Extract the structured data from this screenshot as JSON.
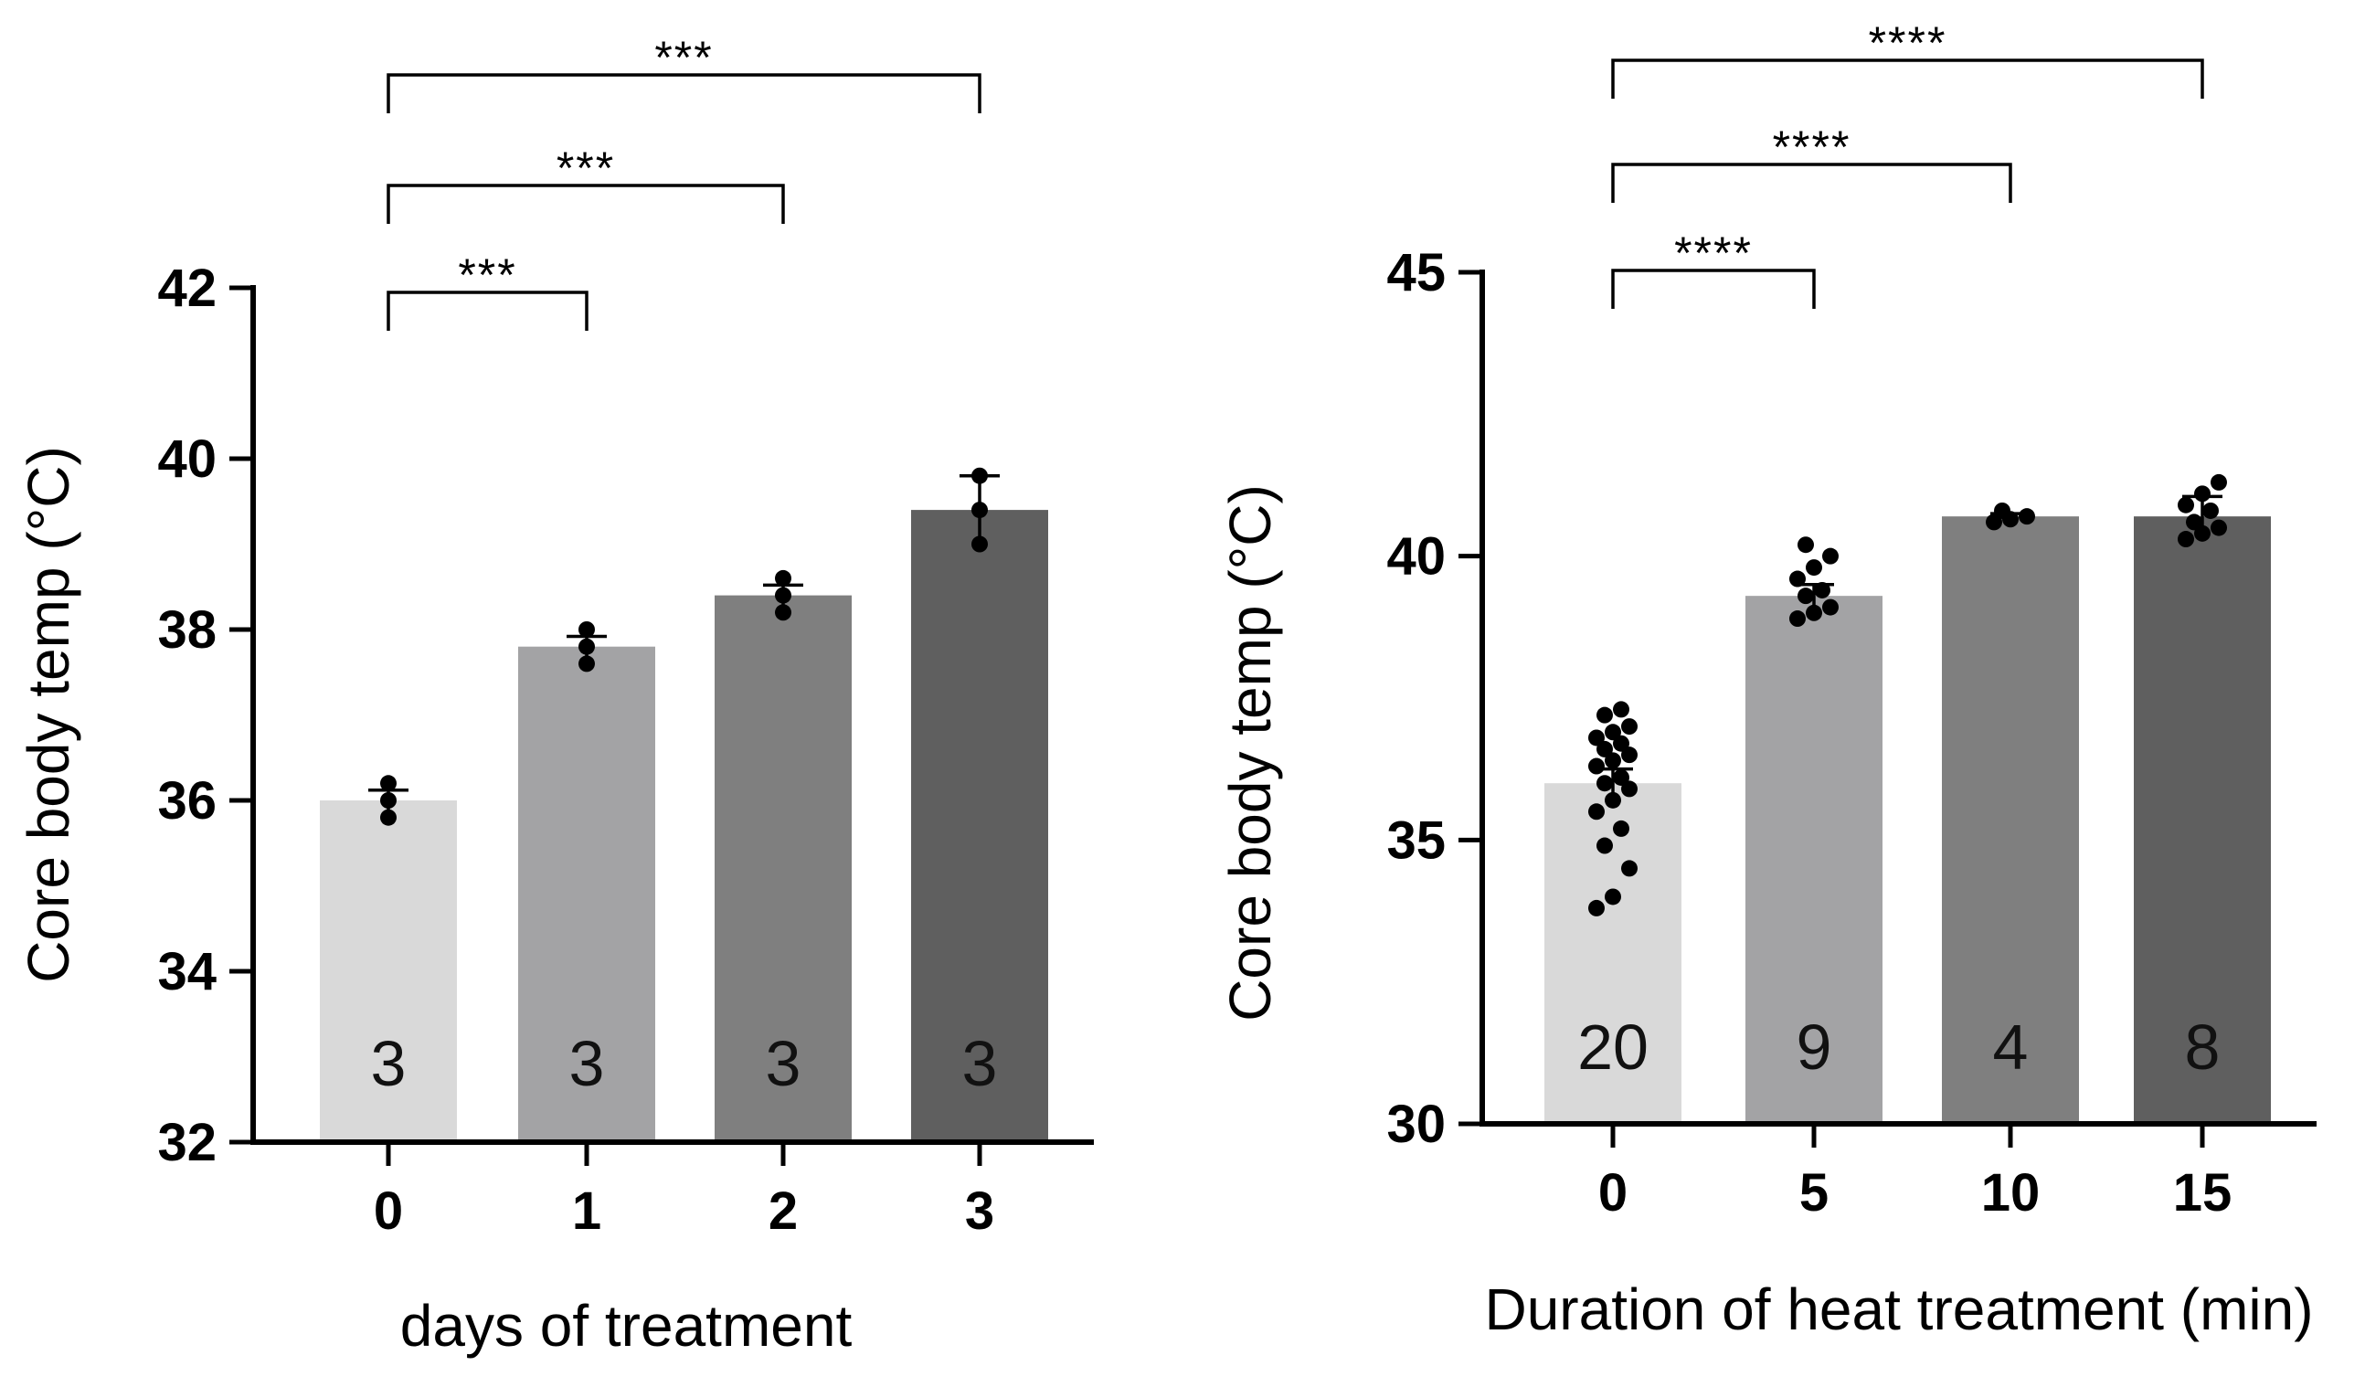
{
  "chart_data": [
    {
      "type": "bar",
      "xlabel": "days of treatment",
      "ylabel": "Core body temp (°C)",
      "ylim": [
        32,
        42
      ],
      "yticks": [
        "32",
        "34",
        "36",
        "38",
        "40",
        "42"
      ],
      "categories": [
        "0",
        "1",
        "2",
        "3"
      ],
      "values": [
        36.0,
        37.8,
        38.4,
        39.4
      ],
      "errors": [
        0.12,
        0.12,
        0.12,
        0.4
      ],
      "n_labels": [
        "3",
        "3",
        "3",
        "3"
      ],
      "colors": [
        "#d9d9d9",
        "#a3a3a5",
        "#7f7f7f",
        "#5f5f5f"
      ],
      "points": [
        [
          35.8,
          36.0,
          36.2
        ],
        [
          37.6,
          37.8,
          38.0
        ],
        [
          38.2,
          38.4,
          38.6
        ],
        [
          39.0,
          39.4,
          39.8
        ]
      ],
      "significance": [
        {
          "from": 0,
          "to": 1,
          "label": "***"
        },
        {
          "from": 0,
          "to": 2,
          "label": "***"
        },
        {
          "from": 0,
          "to": 3,
          "label": "***"
        }
      ]
    },
    {
      "type": "bar",
      "xlabel": "Duration of heat treatment (min)",
      "ylabel": "Core body temp (°C)",
      "ylim": [
        30,
        45
      ],
      "yticks": [
        "30",
        "35",
        "40",
        "45"
      ],
      "categories": [
        "0",
        "5",
        "10",
        "15"
      ],
      "values": [
        36.0,
        39.3,
        40.7,
        40.7
      ],
      "errors": [
        0.25,
        0.2,
        0.05,
        0.35
      ],
      "n_labels": [
        "20",
        "9",
        "4",
        "8"
      ],
      "colors": [
        "#d9d9d9",
        "#a3a3a5",
        "#7f7f7f",
        "#5f5f5f"
      ],
      "points": [
        [
          33.8,
          34.0,
          34.5,
          34.9,
          35.2,
          35.5,
          35.7,
          35.9,
          36.0,
          36.1,
          36.3,
          36.4,
          36.5,
          36.6,
          36.7,
          36.8,
          36.9,
          37.0,
          37.2,
          37.3
        ],
        [
          38.9,
          39.0,
          39.1,
          39.3,
          39.4,
          39.6,
          39.8,
          40.0,
          40.2
        ],
        [
          40.6,
          40.65,
          40.7,
          40.8
        ],
        [
          40.3,
          40.4,
          40.5,
          40.6,
          40.8,
          40.9,
          41.1,
          41.3
        ]
      ],
      "significance": [
        {
          "from": 0,
          "to": 1,
          "label": "****"
        },
        {
          "from": 0,
          "to": 2,
          "label": "****"
        },
        {
          "from": 0,
          "to": 3,
          "label": "****"
        }
      ]
    }
  ]
}
